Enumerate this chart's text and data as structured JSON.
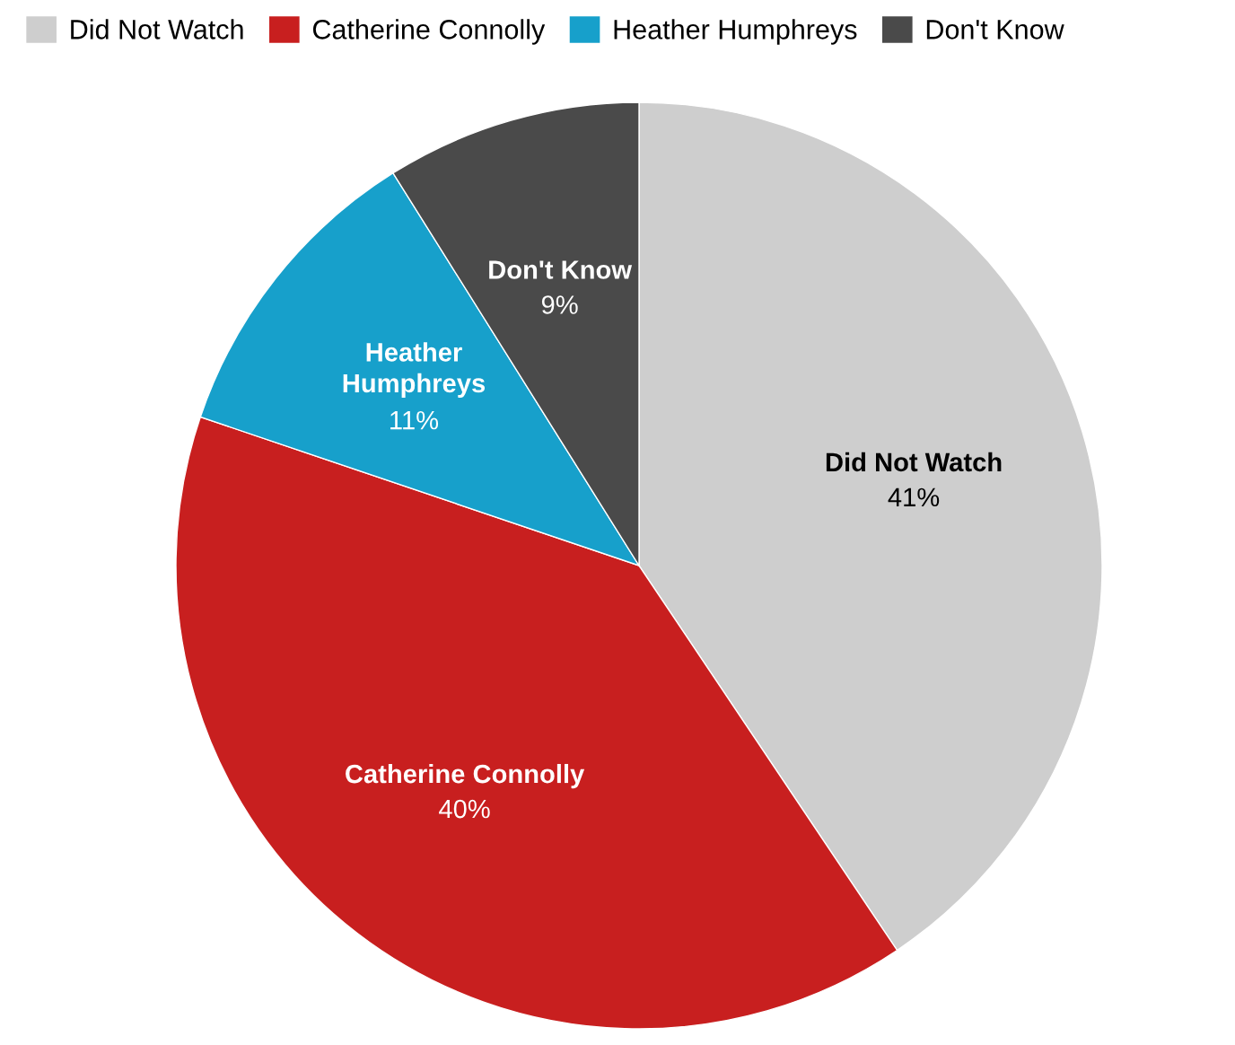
{
  "chart_data": {
    "type": "pie",
    "categories": [
      "Did Not Watch",
      "Catherine Connolly",
      "Heather Humphreys",
      "Don't Know"
    ],
    "values": [
      41,
      40,
      11,
      9
    ],
    "colors": [
      "#cecece",
      "#c81f1f",
      "#17a0cb",
      "#4a4a4a"
    ],
    "value_labels": [
      "41%",
      "40%",
      "11%",
      "9%"
    ],
    "legend": "top left"
  }
}
